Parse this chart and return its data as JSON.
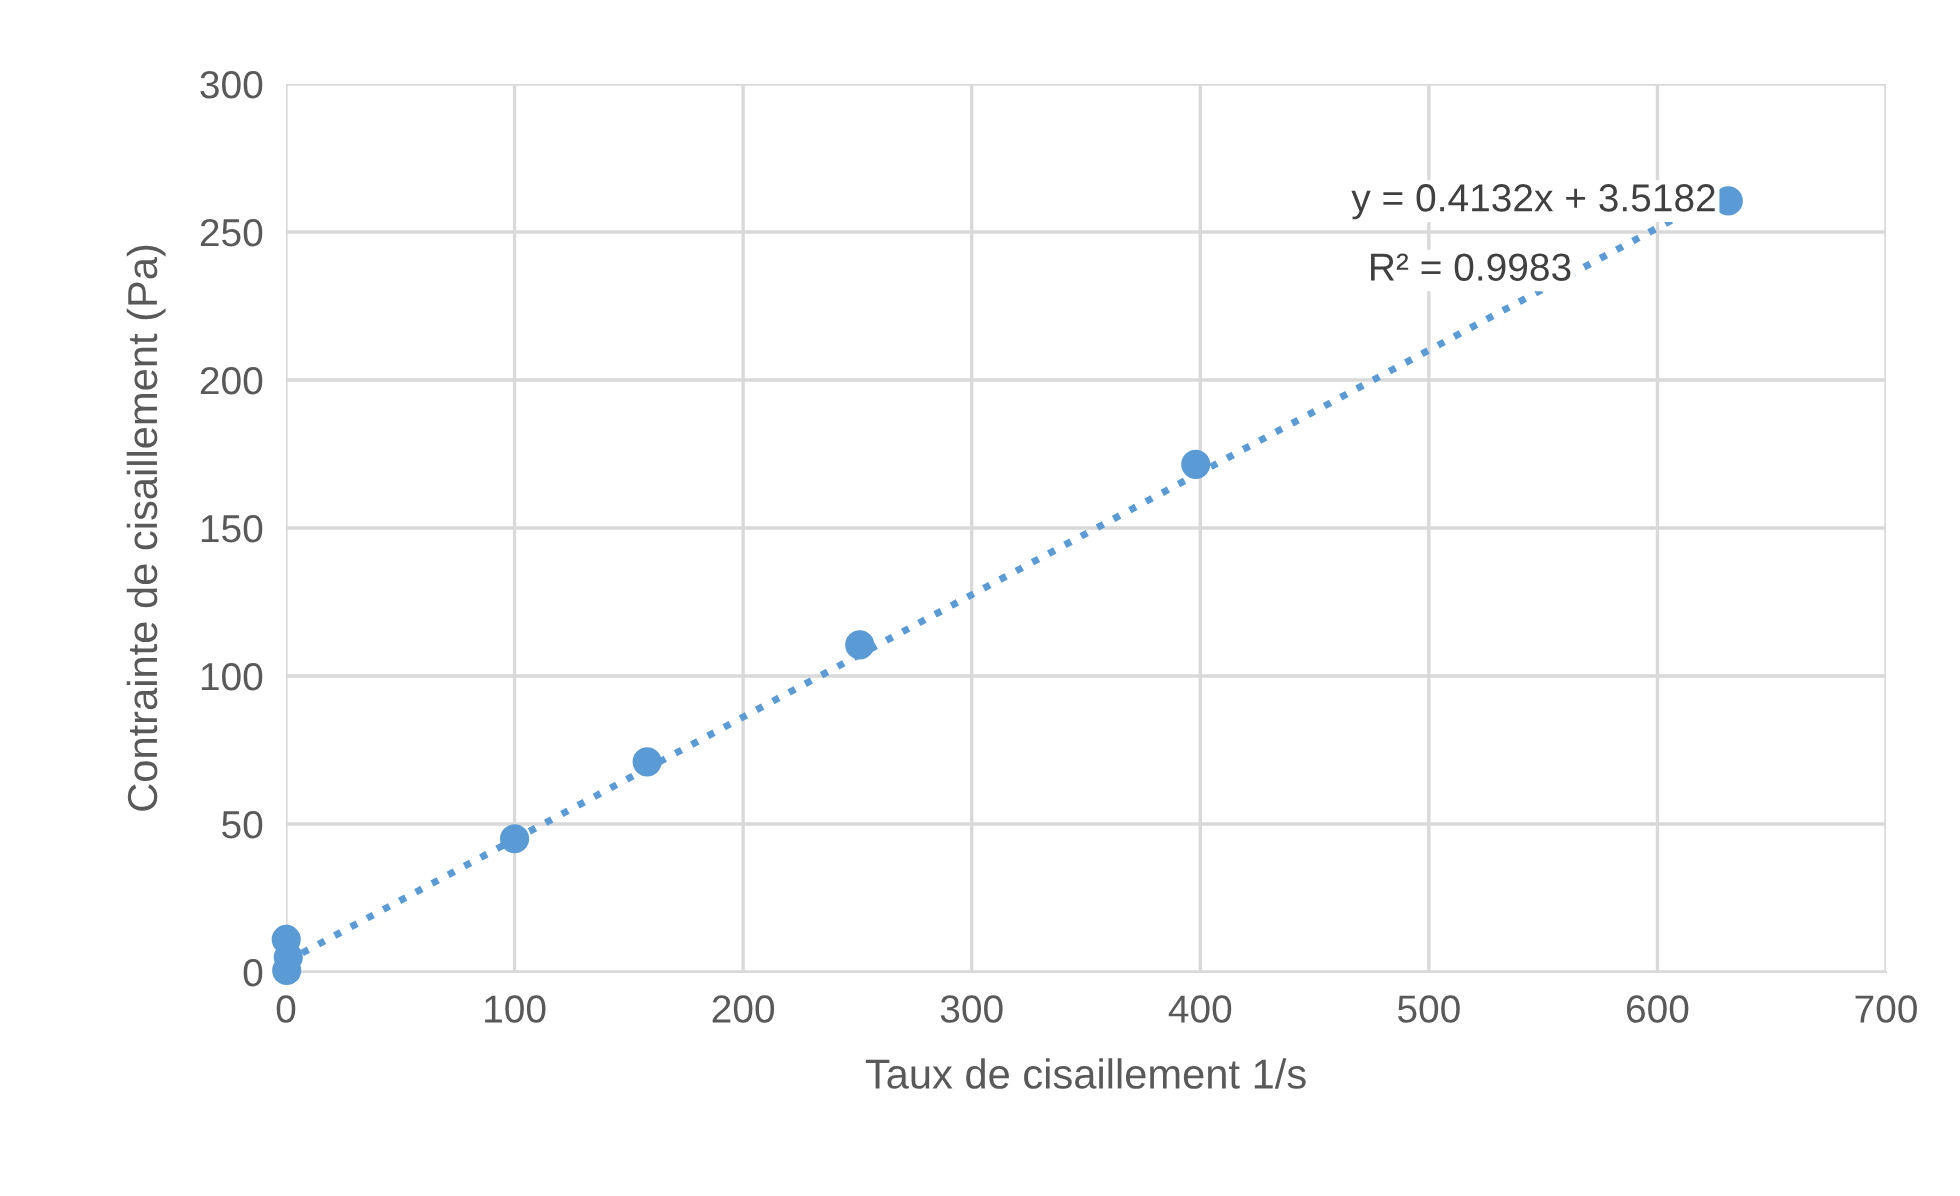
{
  "chart_data": {
    "type": "scatter",
    "xlabel": "Taux de cisaillement 1/s",
    "ylabel": "Contrainte de cisaillement (Pa)",
    "series": [
      {
        "color": "#5b9bd5",
        "marker": "circle",
        "x": [
          0.1,
          0.3,
          1,
          100,
          158,
          251,
          398,
          631
        ],
        "values": [
          11,
          0.5,
          5,
          45,
          71,
          110.5,
          171.5,
          260.5
        ]
      },
      {
        "type": "line",
        "color": "#5b9bd5",
        "line_style": "dotted",
        "marker": "none",
        "x": [
          0,
          631
        ],
        "values": [
          3.5,
          264.2
        ]
      }
    ],
    "annotations": [
      "y = 0.4132x + 3.5182",
      "R² = 0.9983"
    ],
    "xlim": [
      0,
      700
    ],
    "xticks": [
      0,
      100,
      200,
      300,
      400,
      500,
      600,
      700
    ],
    "ylim": [
      0,
      300
    ],
    "yticks": [
      0,
      50,
      100,
      150,
      200,
      250,
      300
    ],
    "grid": true
  }
}
